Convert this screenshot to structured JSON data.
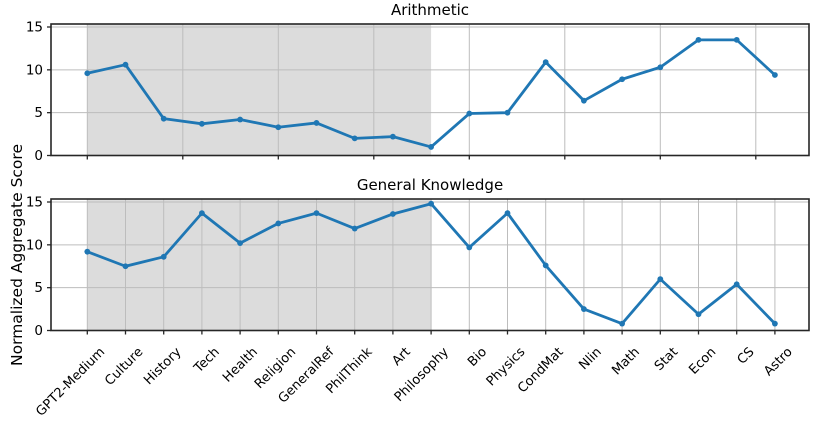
{
  "figure": {
    "ylabel": "Normalized Aggregate Score",
    "yticks": [
      0,
      5,
      10,
      15
    ],
    "colors": {
      "line": "#1f77b4",
      "band": "#dcdcdc",
      "grid": "#bdbdbd",
      "spine": "#262626",
      "text": "#000000"
    }
  },
  "chart_data": [
    {
      "type": "line",
      "title": "Arithmetic",
      "categories": [
        "GPT2-Medium",
        "Culture",
        "History",
        "Tech",
        "Health",
        "Religion",
        "GeneralRef",
        "PhilThink",
        "Art",
        "Philosophy",
        "Bio",
        "Physics",
        "CondMat",
        "Nlin",
        "Math",
        "Stat",
        "Econ",
        "CS",
        "Astro"
      ],
      "values": [
        9.6,
        10.6,
        4.3,
        3.7,
        4.2,
        3.3,
        3.8,
        2.0,
        2.2,
        1.0,
        4.9,
        5.0,
        10.9,
        6.4,
        8.9,
        10.3,
        13.5,
        13.5,
        9.4
      ],
      "ylabel": "Normalized Aggregate Score",
      "ylim": [
        0,
        15.35
      ],
      "grid": true,
      "legend": "none",
      "x_tick_step": 2.5,
      "x_grid_step": 2.5,
      "show_x_tick_labels": false,
      "highlight_band": {
        "from_category": "GPT2-Medium",
        "to_category": "Philosophy",
        "color": "#dcdcdc"
      }
    },
    {
      "type": "line",
      "title": "General Knowledge",
      "categories": [
        "GPT2-Medium",
        "Culture",
        "History",
        "Tech",
        "Health",
        "Religion",
        "GeneralRef",
        "PhilThink",
        "Art",
        "Philosophy",
        "Bio",
        "Physics",
        "CondMat",
        "Nlin",
        "Math",
        "Stat",
        "Econ",
        "CS",
        "Astro"
      ],
      "values": [
        9.2,
        7.5,
        8.6,
        13.7,
        10.2,
        12.5,
        13.7,
        11.9,
        13.6,
        14.8,
        9.7,
        13.7,
        7.6,
        2.5,
        0.8,
        6.0,
        1.9,
        5.4,
        0.8
      ],
      "ylabel": "Normalized Aggregate Score",
      "ylim": [
        0,
        15.35
      ],
      "grid": true,
      "legend": "none",
      "x_tick_step": 1,
      "x_grid_step": 1,
      "show_x_tick_labels": true,
      "highlight_band": {
        "from_category": "GPT2-Medium",
        "to_category": "Philosophy",
        "color": "#dcdcdc"
      }
    }
  ]
}
